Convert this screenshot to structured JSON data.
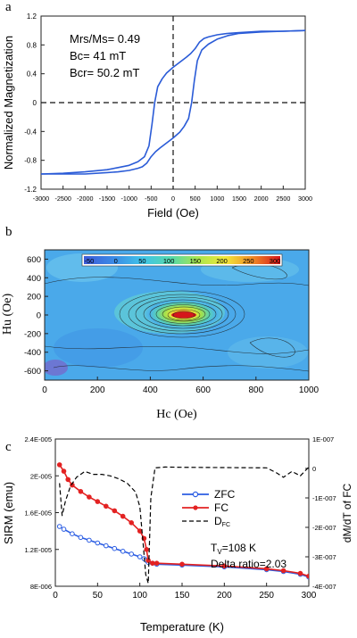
{
  "chart_data": [
    {
      "type": "line",
      "panel_label": "a",
      "xlabel": "Field (Oe)",
      "ylabel": "Normalized Magnetization",
      "xlim": [
        -3000,
        3000
      ],
      "ylim": [
        -1.2,
        1.2
      ],
      "x_ticks": [
        "-3000",
        "-2500",
        "-2000",
        "-1500",
        "-1000",
        "-500",
        "0",
        "500",
        "1000",
        "1500",
        "2000",
        "2500",
        "3000"
      ],
      "y_ticks": [
        "1.2",
        "0.8",
        "0.4",
        "0",
        "-0.4",
        "-0.8",
        "-1.2"
      ],
      "annotations": [
        "Mrs/Ms= 0.49",
        "Bc= 41 mT",
        "Bcr= 50.2 mT"
      ],
      "series": [
        {
          "color": "#2a5bd7",
          "x": [
            -3000,
            -2500,
            -2000,
            -1500,
            -1250,
            -1000,
            -800,
            -650,
            -550,
            -480,
            -420,
            -350,
            -250,
            -150,
            0,
            150,
            300,
            400,
            500,
            600,
            700,
            800,
            1000,
            1250,
            1500,
            2000,
            2500,
            3000
          ],
          "y": [
            -0.99,
            -0.98,
            -0.96,
            -0.93,
            -0.9,
            -0.87,
            -0.82,
            -0.75,
            -0.6,
            -0.3,
            0.0,
            0.22,
            0.33,
            0.41,
            0.49,
            0.56,
            0.63,
            0.68,
            0.75,
            0.84,
            0.89,
            0.91,
            0.94,
            0.96,
            0.97,
            0.99,
            0.99,
            1.0
          ]
        },
        {
          "color": "#2a5bd7",
          "x": [
            3000,
            2500,
            2000,
            1500,
            1250,
            1000,
            800,
            650,
            550,
            480,
            420,
            350,
            250,
            150,
            0,
            -150,
            -300,
            -400,
            -500,
            -600,
            -700,
            -800,
            -1000,
            -1250,
            -1500,
            -2000,
            -2500,
            -3000
          ],
          "y": [
            1.0,
            0.99,
            0.98,
            0.96,
            0.93,
            0.88,
            0.81,
            0.73,
            0.58,
            0.3,
            0.0,
            -0.22,
            -0.33,
            -0.41,
            -0.49,
            -0.56,
            -0.63,
            -0.68,
            -0.75,
            -0.84,
            -0.89,
            -0.91,
            -0.94,
            -0.96,
            -0.97,
            -0.99,
            -0.99,
            -0.99
          ]
        }
      ]
    },
    {
      "type": "heatmap",
      "panel_label": "b",
      "xlabel": "Hc (Oe)",
      "ylabel": "Hu (Oe)",
      "xlim": [
        0,
        1000
      ],
      "ylim": [
        -700,
        700
      ],
      "x_ticks": [
        "0",
        "200",
        "400",
        "600",
        "800",
        "1000"
      ],
      "y_ticks": [
        "600",
        "400",
        "200",
        "0",
        "-200",
        "-400",
        "-600"
      ],
      "colorbar_ticks": [
        "-50",
        "0",
        "50",
        "100",
        "150",
        "200",
        "250",
        "300"
      ],
      "colorbar_range": [
        -60,
        310
      ],
      "peak": {
        "hc": 500,
        "hu": 0,
        "value": 300
      }
    },
    {
      "type": "line",
      "panel_label": "c",
      "xlabel": "Temperature (K)",
      "ylabel": "SIRM (emu)",
      "ylabel_right": "dM/dT of FC",
      "xlim": [
        0,
        300
      ],
      "ylim": [
        8e-06,
        2.4e-05
      ],
      "ylim_right": [
        -4e-07,
        1e-07
      ],
      "x_ticks": [
        "0",
        "50",
        "100",
        "150",
        "200",
        "250",
        "300"
      ],
      "y_ticks": [
        "2.4E-005",
        "2E-005",
        "1.6E-005",
        "1.2E-005",
        "8E-006"
      ],
      "y_ticks_right": [
        "1E-007",
        "0",
        "-1E-007",
        "-2E-007",
        "-3E-007",
        "-4E-007"
      ],
      "legend": [
        "ZFC",
        "FC",
        "D"
      ],
      "legend_sub": "FC",
      "annotation_tv": "T",
      "annotation_tv_sub": "V",
      "annotation_tv_value": "=108 K",
      "annotation_delta": "Delta ratio=2.03",
      "series": [
        {
          "color": "#2b5de3",
          "marker": "open-circle",
          "x": [
            5,
            10,
            20,
            30,
            40,
            50,
            60,
            70,
            80,
            90,
            100,
            105,
            108,
            110,
            115,
            120,
            150,
            200,
            250,
            270,
            290,
            300
          ],
          "y": [
            1.45e-05,
            1.42e-05,
            1.37e-05,
            1.33e-05,
            1.3e-05,
            1.27e-05,
            1.24e-05,
            1.21e-05,
            1.18e-05,
            1.15e-05,
            1.12e-05,
            1.1e-05,
            1.08e-05,
            1.06e-05,
            1.05e-05,
            1.04e-05,
            1.03e-05,
            1.01e-05,
            9.8e-06,
            9.6e-06,
            9.3e-06,
            9e-06
          ]
        },
        {
          "color": "#e32222",
          "marker": "filled-circle",
          "x": [
            5,
            10,
            15,
            20,
            30,
            40,
            50,
            60,
            70,
            80,
            90,
            100,
            105,
            108,
            110,
            115,
            120,
            150,
            200,
            250,
            270,
            290,
            300
          ],
          "y": [
            2.12e-05,
            2.05e-05,
            1.96e-05,
            1.9e-05,
            1.83e-05,
            1.77e-05,
            1.72e-05,
            1.67e-05,
            1.62e-05,
            1.56e-05,
            1.49e-05,
            1.4e-05,
            1.32e-05,
            1.2e-05,
            1.08e-05,
            1.05e-05,
            1.05e-05,
            1.04e-05,
            1.02e-05,
            9.9e-06,
            9.7e-06,
            9.4e-06,
            9.1e-06
          ]
        },
        {
          "axis": "right",
          "color": "#000000",
          "dash": true,
          "x": [
            5,
            8,
            12,
            18,
            25,
            35,
            45,
            55,
            65,
            75,
            85,
            95,
            100,
            104,
            107,
            110,
            113,
            118,
            130,
            150,
            200,
            250,
            262,
            270,
            280,
            290,
            300
          ],
          "y": [
            -5e-08,
            -1.6e-07,
            -1.1e-07,
            -6e-08,
            -3e-08,
            -1e-08,
            -2e-08,
            -2e-08,
            -2.5e-08,
            -3.5e-08,
            -5e-08,
            -8e-08,
            -1.3e-07,
            -2.6e-07,
            -3.6e-07,
            -3.9e-07,
            -1e-07,
            2e-09,
            5e-09,
            4e-09,
            3e-09,
            2e-09,
            -1.5e-08,
            -3e-08,
            -1e-08,
            -2.5e-08,
            5e-09
          ]
        }
      ]
    }
  ]
}
